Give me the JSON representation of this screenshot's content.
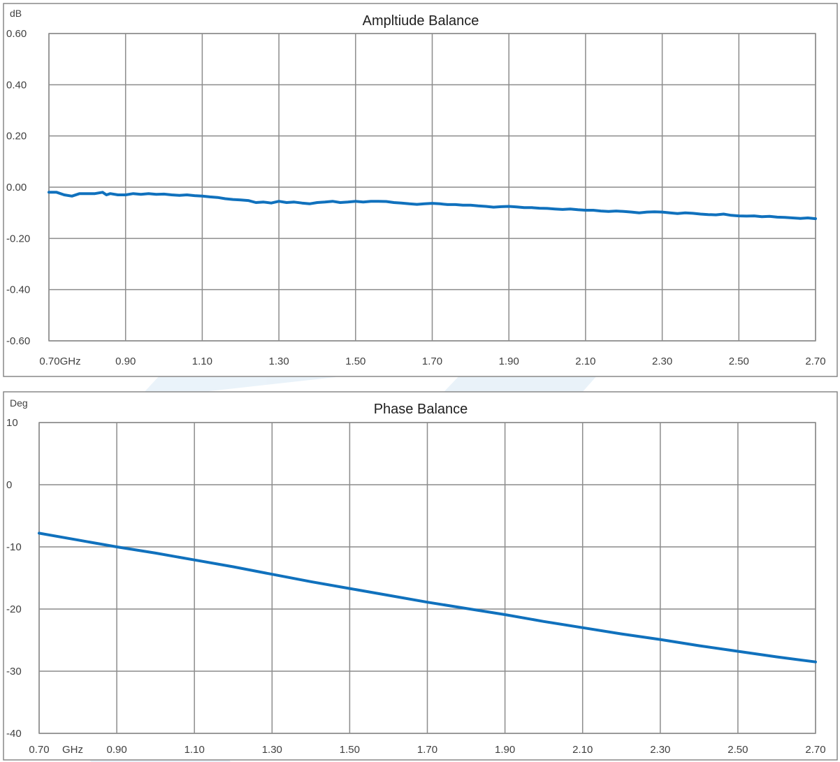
{
  "chart_data": [
    {
      "type": "line",
      "title": "Ampltiude Balance",
      "ylabel": "dB",
      "xlabel": "",
      "x_tick_labels": [
        "0.70GHz",
        "0.90",
        "1.10",
        "1.30",
        "1.50",
        "1.70",
        "1.90",
        "2.10",
        "2.30",
        "2.50",
        "2.70"
      ],
      "y_tick_labels": [
        "0.60",
        "0.40",
        "0.20",
        "0.00",
        "-0.20",
        "-0.40",
        "-0.60"
      ],
      "xlim": [
        0.7,
        2.7
      ],
      "ylim": [
        -0.6,
        0.6
      ],
      "x_ticks": [
        0.7,
        0.9,
        1.1,
        1.3,
        1.5,
        1.7,
        1.9,
        2.1,
        2.3,
        2.5,
        2.7
      ],
      "y_ticks": [
        0.6,
        0.4,
        0.2,
        0.0,
        -0.2,
        -0.4,
        -0.6
      ],
      "grid": true,
      "legend": "none",
      "series": [
        {
          "color": "#1071bd",
          "x": [
            0.7,
            0.72,
            0.74,
            0.76,
            0.78,
            0.8,
            0.82,
            0.84,
            0.85,
            0.86,
            0.88,
            0.9,
            0.92,
            0.94,
            0.96,
            0.98,
            1.0,
            1.02,
            1.04,
            1.06,
            1.08,
            1.1,
            1.12,
            1.14,
            1.16,
            1.18,
            1.2,
            1.22,
            1.24,
            1.26,
            1.28,
            1.3,
            1.32,
            1.34,
            1.36,
            1.38,
            1.4,
            1.42,
            1.44,
            1.46,
            1.48,
            1.5,
            1.52,
            1.54,
            1.56,
            1.58,
            1.6,
            1.62,
            1.64,
            1.66,
            1.68,
            1.7,
            1.72,
            1.74,
            1.76,
            1.78,
            1.8,
            1.82,
            1.84,
            1.86,
            1.88,
            1.9,
            1.92,
            1.94,
            1.96,
            1.98,
            2.0,
            2.02,
            2.04,
            2.06,
            2.08,
            2.1,
            2.12,
            2.14,
            2.16,
            2.18,
            2.2,
            2.22,
            2.24,
            2.26,
            2.28,
            2.3,
            2.32,
            2.34,
            2.36,
            2.38,
            2.4,
            2.42,
            2.44,
            2.46,
            2.48,
            2.5,
            2.52,
            2.54,
            2.56,
            2.58,
            2.6,
            2.62,
            2.64,
            2.66,
            2.68,
            2.7
          ],
          "y": [
            -0.02,
            -0.02,
            -0.03,
            -0.035,
            -0.025,
            -0.025,
            -0.025,
            -0.02,
            -0.03,
            -0.025,
            -0.03,
            -0.03,
            -0.025,
            -0.028,
            -0.025,
            -0.028,
            -0.027,
            -0.03,
            -0.032,
            -0.03,
            -0.033,
            -0.035,
            -0.038,
            -0.04,
            -0.045,
            -0.048,
            -0.05,
            -0.052,
            -0.06,
            -0.058,
            -0.062,
            -0.055,
            -0.06,
            -0.058,
            -0.062,
            -0.065,
            -0.06,
            -0.058,
            -0.055,
            -0.06,
            -0.058,
            -0.055,
            -0.058,
            -0.055,
            -0.055,
            -0.056,
            -0.06,
            -0.062,
            -0.065,
            -0.067,
            -0.065,
            -0.063,
            -0.065,
            -0.068,
            -0.068,
            -0.07,
            -0.07,
            -0.073,
            -0.075,
            -0.078,
            -0.076,
            -0.075,
            -0.077,
            -0.08,
            -0.08,
            -0.082,
            -0.083,
            -0.085,
            -0.087,
            -0.085,
            -0.088,
            -0.09,
            -0.09,
            -0.093,
            -0.095,
            -0.093,
            -0.095,
            -0.097,
            -0.1,
            -0.097,
            -0.096,
            -0.097,
            -0.1,
            -0.103,
            -0.1,
            -0.102,
            -0.105,
            -0.107,
            -0.108,
            -0.105,
            -0.11,
            -0.112,
            -0.113,
            -0.112,
            -0.115,
            -0.114,
            -0.117,
            -0.118,
            -0.12,
            -0.122,
            -0.12,
            -0.123
          ]
        }
      ]
    },
    {
      "type": "line",
      "title": "Phase Balance",
      "ylabel": "Deg",
      "xlabel": "",
      "x_tick_labels": [
        "0.70",
        "0.90",
        "1.10",
        "1.30",
        "1.50",
        "1.70",
        "1.90",
        "2.10",
        "2.30",
        "2.50",
        "2.70"
      ],
      "x_unit_label": "GHz",
      "y_tick_labels": [
        "10",
        "0",
        "-10",
        "-20",
        "-30",
        "-40"
      ],
      "xlim": [
        0.7,
        2.7
      ],
      "ylim": [
        -40,
        10
      ],
      "x_ticks": [
        0.7,
        0.9,
        1.1,
        1.3,
        1.5,
        1.7,
        1.9,
        2.1,
        2.3,
        2.5,
        2.7
      ],
      "y_ticks": [
        10,
        0,
        -10,
        -20,
        -30,
        -40
      ],
      "grid": true,
      "legend": "none",
      "series": [
        {
          "color": "#1071bd",
          "x": [
            0.7,
            0.8,
            0.9,
            1.0,
            1.1,
            1.2,
            1.3,
            1.4,
            1.5,
            1.6,
            1.7,
            1.8,
            1.9,
            2.0,
            2.1,
            2.2,
            2.3,
            2.4,
            2.5,
            2.6,
            2.7
          ],
          "y": [
            -7.8,
            -8.9,
            -10.0,
            -11.0,
            -12.1,
            -13.2,
            -14.4,
            -15.6,
            -16.7,
            -17.8,
            -18.9,
            -19.9,
            -20.9,
            -22.0,
            -23.0,
            -24.0,
            -24.9,
            -25.9,
            -26.8,
            -27.7,
            -28.5
          ]
        }
      ]
    }
  ]
}
